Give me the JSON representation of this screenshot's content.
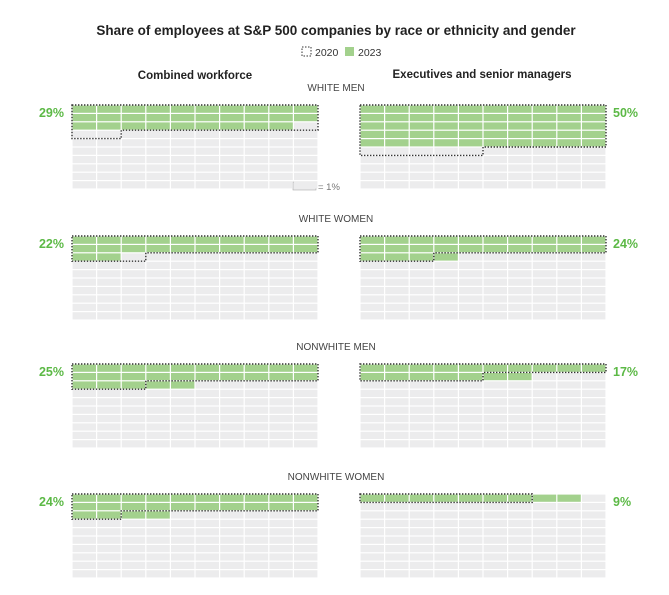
{
  "chart_data": {
    "type": "waffle",
    "title": "Share of employees at S&P 500 companies by race or ethnicity and gender",
    "legend": [
      {
        "label": "2020",
        "style": "dotted-outline"
      },
      {
        "label": "2023",
        "color": "#a3d18d"
      }
    ],
    "legend_placement": "top-center",
    "columns": [
      "Combined workforce",
      "Executives and senior managers"
    ],
    "unit_label": "= 1%",
    "groups": [
      {
        "label": "WHITE MEN",
        "combined": {
          "y2023": 29,
          "y2020": 32,
          "label": "29%"
        },
        "executives": {
          "y2023": 50,
          "y2020": 55,
          "label": "50%"
        }
      },
      {
        "label": "WHITE WOMEN",
        "combined": {
          "y2023": 22,
          "y2020": 23,
          "label": "22%"
        },
        "executives": {
          "y2023": 24,
          "y2020": 23,
          "label": "24%"
        }
      },
      {
        "label": "NONWHITE MEN",
        "combined": {
          "y2023": 25,
          "y2020": 23,
          "label": "25%"
        },
        "executives": {
          "y2023": 17,
          "y2020": 15,
          "label": "17%"
        }
      },
      {
        "label": "NONWHITE WOMEN",
        "combined": {
          "y2023": 24,
          "y2020": 22,
          "label": "24%"
        },
        "executives": {
          "y2023": 9,
          "y2020": 7,
          "label": "9%"
        }
      }
    ],
    "colors": {
      "fill": "#a3d18d",
      "empty": "#ececed",
      "label": "#5cb946",
      "outline": "#333333",
      "text": "#222222"
    }
  }
}
